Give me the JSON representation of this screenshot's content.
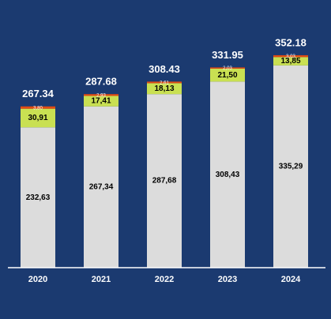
{
  "colors": {
    "background": "#1b3a70",
    "base": "#dcdcdc",
    "middle": "#c9e052",
    "top": "#e14b12",
    "axis": "#ffffff",
    "total_label": "#ffffff",
    "inner_label": "#000000",
    "top_label": "#ffffff"
  },
  "chart_data": {
    "type": "bar",
    "stacked": true,
    "categories": [
      "2020",
      "2021",
      "2022",
      "2023",
      "2024"
    ],
    "totals": [
      "267.34",
      "287.68",
      "308.43",
      "331.95",
      "352.18"
    ],
    "series": [
      {
        "values": [
          232.63,
          267.34,
          287.68,
          308.43,
          335.29
        ],
        "labels": [
          "232,63",
          "267,34",
          "287,68",
          "308,43",
          "335,29"
        ]
      },
      {
        "values": [
          30.91,
          17.41,
          18.13,
          21.5,
          13.85
        ],
        "labels": [
          "30,91",
          "17,41",
          "18,13",
          "21,50",
          "13,85"
        ]
      },
      {
        "values": [
          3.8,
          2.93,
          2.61,
          2.03,
          3.03
        ],
        "labels": [
          "3,80",
          "2,93",
          "2,61",
          "2,03",
          "3,03"
        ]
      }
    ],
    "grid": false,
    "legend": "none"
  }
}
